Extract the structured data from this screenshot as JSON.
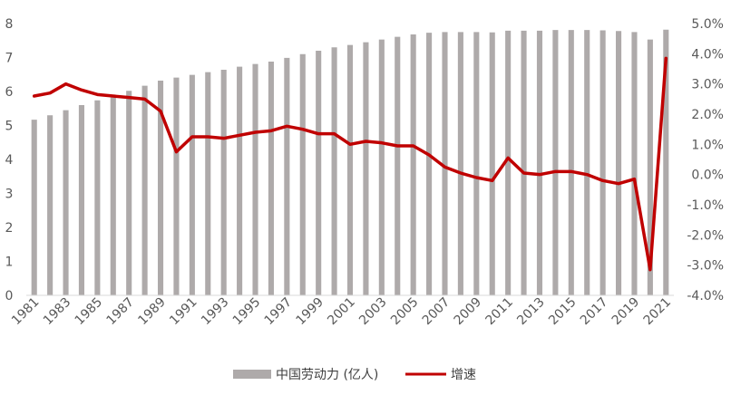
{
  "chart_data": {
    "type": "bar+line",
    "title": "",
    "x": [
      1981,
      1982,
      1983,
      1984,
      1985,
      1986,
      1987,
      1988,
      1989,
      1990,
      1991,
      1992,
      1993,
      1994,
      1995,
      1996,
      1997,
      1998,
      1999,
      2000,
      2001,
      2002,
      2003,
      2004,
      2005,
      2006,
      2007,
      2008,
      2009,
      2010,
      2011,
      2012,
      2013,
      2014,
      2015,
      2016,
      2017,
      2018,
      2019,
      2020,
      2021
    ],
    "x_tick_labels": [
      "1981",
      "1983",
      "1985",
      "1987",
      "1989",
      "1991",
      "1993",
      "1995",
      "1997",
      "1999",
      "2001",
      "2003",
      "2005",
      "2007",
      "2009",
      "2011",
      "2013",
      "2015",
      "2017",
      "2019",
      "2021"
    ],
    "left_axis": {
      "ylim": [
        0,
        8
      ],
      "ticks": [
        "0",
        "1",
        "2",
        "3",
        "4",
        "5",
        "6",
        "7",
        "8"
      ]
    },
    "right_axis": {
      "ylim": [
        -4,
        5
      ],
      "ticks": [
        "5.0%",
        "4.0%",
        "3.0%",
        "2.0%",
        "1.0%",
        "0.0%",
        "-1.0%",
        "-2.0%",
        "-3.0%",
        "-4.0%"
      ]
    },
    "series": [
      {
        "name": "中国劳动力 (亿人)",
        "type": "bar",
        "axis": "left",
        "color": "#aeaaaa",
        "values": [
          5.17,
          5.3,
          5.45,
          5.6,
          5.74,
          5.88,
          6.02,
          6.17,
          6.32,
          6.41,
          6.49,
          6.57,
          6.64,
          6.73,
          6.81,
          6.88,
          6.99,
          7.1,
          7.2,
          7.3,
          7.37,
          7.45,
          7.53,
          7.61,
          7.68,
          7.73,
          7.75,
          7.75,
          7.75,
          7.74,
          7.79,
          7.79,
          7.79,
          7.81,
          7.81,
          7.81,
          7.8,
          7.78,
          7.75,
          7.53,
          7.82
        ]
      },
      {
        "name": "增速",
        "type": "line",
        "axis": "right",
        "color": "#c00000",
        "values": [
          2.6,
          2.7,
          3.0,
          2.8,
          2.65,
          2.6,
          2.55,
          2.5,
          2.1,
          0.75,
          1.25,
          1.25,
          1.2,
          1.3,
          1.4,
          1.45,
          1.6,
          1.5,
          1.35,
          1.35,
          1.0,
          1.1,
          1.05,
          0.95,
          0.95,
          0.65,
          0.25,
          0.05,
          -0.1,
          -0.2,
          0.55,
          0.05,
          0.0,
          0.1,
          0.1,
          0.0,
          -0.2,
          -0.3,
          -0.15,
          -3.15,
          3.85
        ]
      }
    ],
    "legend": {
      "position": "bottom",
      "items": [
        {
          "label": "中国劳动力 (亿人)",
          "color": "#aeaaaa",
          "marker": "bar"
        },
        {
          "label": "增速",
          "color": "#c00000",
          "marker": "line"
        }
      ]
    },
    "grid": false
  }
}
